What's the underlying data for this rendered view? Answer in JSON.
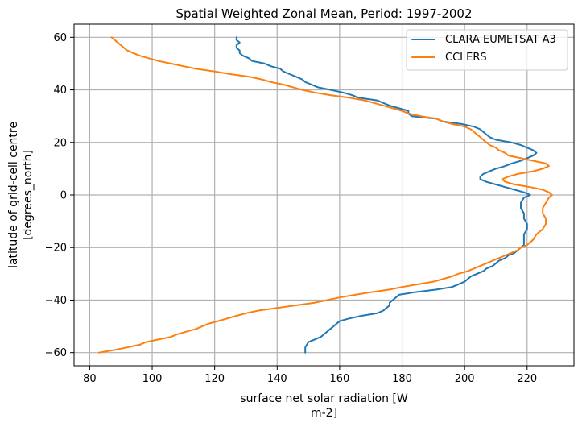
{
  "chart_data": {
    "type": "line",
    "title": "Spatial Weighted Zonal Mean, Period: 1997-2002",
    "xlabel": [
      "surface net solar radiation [W",
      "m-2]"
    ],
    "ylabel": [
      "latitude of grid-cell centre",
      "[degrees_north]"
    ],
    "xlim": [
      75,
      235
    ],
    "ylim": [
      -65,
      65
    ],
    "xticks": [
      80,
      100,
      120,
      140,
      160,
      180,
      200,
      220
    ],
    "yticks": [
      -60,
      -40,
      -20,
      0,
      20,
      40,
      60
    ],
    "xtick_labels": [
      "80",
      "100",
      "120",
      "140",
      "160",
      "180",
      "200",
      "220"
    ],
    "ytick_labels": [
      "−60",
      "−40",
      "−20",
      "0",
      "20",
      "40",
      "60"
    ],
    "grid": true,
    "legend_position": "top-right",
    "series": [
      {
        "name": "CLARA EUMETSAT A3",
        "color": "#1f77b4",
        "points": [
          [
            149,
            -60
          ],
          [
            149,
            -58
          ],
          [
            150,
            -56
          ],
          [
            152,
            -55
          ],
          [
            154,
            -54
          ],
          [
            155,
            -53
          ],
          [
            156,
            -52
          ],
          [
            157,
            -51
          ],
          [
            158,
            -50
          ],
          [
            159,
            -49
          ],
          [
            160,
            -48
          ],
          [
            163,
            -47
          ],
          [
            167,
            -46
          ],
          [
            172,
            -45
          ],
          [
            174,
            -44
          ],
          [
            175,
            -43
          ],
          [
            176,
            -42
          ],
          [
            176,
            -41
          ],
          [
            177,
            -40
          ],
          [
            178,
            -39
          ],
          [
            179,
            -38
          ],
          [
            184,
            -37
          ],
          [
            191,
            -36
          ],
          [
            196,
            -35
          ],
          [
            198,
            -34
          ],
          [
            200,
            -33
          ],
          [
            201,
            -32
          ],
          [
            202,
            -31
          ],
          [
            204,
            -30
          ],
          [
            206,
            -29
          ],
          [
            207,
            -28
          ],
          [
            209,
            -27
          ],
          [
            210,
            -26
          ],
          [
            211,
            -25
          ],
          [
            213,
            -24
          ],
          [
            214,
            -23
          ],
          [
            216,
            -22
          ],
          [
            217,
            -21
          ],
          [
            218,
            -20
          ],
          [
            219,
            -19
          ],
          [
            219,
            -17
          ],
          [
            219,
            -15
          ],
          [
            220,
            -13
          ],
          [
            220,
            -11
          ],
          [
            219,
            -9
          ],
          [
            219,
            -7
          ],
          [
            218,
            -5
          ],
          [
            218,
            -3
          ],
          [
            219,
            -1
          ],
          [
            221,
            0
          ],
          [
            219,
            1
          ],
          [
            216,
            2
          ],
          [
            213,
            3
          ],
          [
            210,
            4
          ],
          [
            207,
            5
          ],
          [
            205,
            6
          ],
          [
            205,
            7
          ],
          [
            206,
            8
          ],
          [
            208,
            9
          ],
          [
            210,
            10
          ],
          [
            213,
            11
          ],
          [
            215,
            12
          ],
          [
            218,
            13
          ],
          [
            220,
            14
          ],
          [
            222,
            15
          ],
          [
            223,
            16
          ],
          [
            222,
            17
          ],
          [
            220,
            18
          ],
          [
            218,
            19
          ],
          [
            215,
            20
          ],
          [
            210,
            21
          ],
          [
            208,
            22
          ],
          [
            207,
            23
          ],
          [
            206,
            24
          ],
          [
            205,
            25
          ],
          [
            203,
            26
          ],
          [
            199,
            27
          ],
          [
            193,
            28
          ],
          [
            191,
            29
          ],
          [
            183,
            30
          ],
          [
            182,
            31
          ],
          [
            182,
            32
          ],
          [
            179,
            33
          ],
          [
            176,
            34
          ],
          [
            174,
            35
          ],
          [
            172,
            36
          ],
          [
            166,
            37
          ],
          [
            164,
            38
          ],
          [
            161,
            39
          ],
          [
            157,
            40
          ],
          [
            153,
            41
          ],
          [
            151,
            42
          ],
          [
            149,
            43
          ],
          [
            148,
            44
          ],
          [
            146,
            45
          ],
          [
            144,
            46
          ],
          [
            142,
            47
          ],
          [
            141,
            48
          ],
          [
            138,
            49
          ],
          [
            136,
            50
          ],
          [
            132,
            51
          ],
          [
            131,
            52
          ],
          [
            129,
            53
          ],
          [
            128,
            54
          ],
          [
            128,
            55
          ],
          [
            127,
            56
          ],
          [
            127,
            57
          ],
          [
            128,
            58
          ],
          [
            127,
            59
          ],
          [
            127,
            60
          ]
        ]
      },
      {
        "name": "CCI ERS",
        "color": "#ff7f0e",
        "points": [
          [
            83,
            -60
          ],
          [
            88,
            -59
          ],
          [
            92,
            -58
          ],
          [
            96,
            -57
          ],
          [
            98,
            -56
          ],
          [
            102,
            -55
          ],
          [
            106,
            -54
          ],
          [
            108,
            -53
          ],
          [
            111,
            -52
          ],
          [
            114,
            -51
          ],
          [
            116,
            -50
          ],
          [
            118,
            -49
          ],
          [
            121,
            -48
          ],
          [
            124,
            -47
          ],
          [
            127,
            -46
          ],
          [
            130,
            -45
          ],
          [
            134,
            -44
          ],
          [
            140,
            -43
          ],
          [
            146,
            -42
          ],
          [
            152,
            -41
          ],
          [
            156,
            -40
          ],
          [
            160,
            -39
          ],
          [
            165,
            -38
          ],
          [
            170,
            -37
          ],
          [
            176,
            -36
          ],
          [
            180,
            -35
          ],
          [
            185,
            -34
          ],
          [
            190,
            -33
          ],
          [
            193,
            -32
          ],
          [
            196,
            -31
          ],
          [
            198,
            -30
          ],
          [
            201,
            -29
          ],
          [
            203,
            -28
          ],
          [
            205,
            -27
          ],
          [
            207,
            -26
          ],
          [
            209,
            -25
          ],
          [
            211,
            -24
          ],
          [
            213,
            -23
          ],
          [
            215,
            -22
          ],
          [
            217,
            -21
          ],
          [
            218,
            -20
          ],
          [
            220,
            -19
          ],
          [
            221,
            -18
          ],
          [
            222,
            -17
          ],
          [
            223,
            -15
          ],
          [
            225,
            -13
          ],
          [
            226,
            -11
          ],
          [
            226,
            -9
          ],
          [
            225,
            -7
          ],
          [
            225,
            -5
          ],
          [
            226,
            -3
          ],
          [
            227,
            -1
          ],
          [
            228,
            0
          ],
          [
            227,
            1
          ],
          [
            225,
            2
          ],
          [
            221,
            3
          ],
          [
            216,
            4
          ],
          [
            213,
            5
          ],
          [
            212,
            6
          ],
          [
            214,
            7
          ],
          [
            217,
            8
          ],
          [
            222,
            9
          ],
          [
            225,
            10
          ],
          [
            227,
            11
          ],
          [
            226,
            12
          ],
          [
            222,
            13
          ],
          [
            218,
            14
          ],
          [
            214,
            15
          ],
          [
            213,
            16
          ],
          [
            211,
            17
          ],
          [
            210,
            18
          ],
          [
            208,
            19
          ],
          [
            207,
            20
          ],
          [
            206,
            21
          ],
          [
            205,
            22
          ],
          [
            204,
            23
          ],
          [
            203,
            24
          ],
          [
            202,
            25
          ],
          [
            200,
            26
          ],
          [
            196,
            27
          ],
          [
            193,
            28
          ],
          [
            191,
            29
          ],
          [
            186,
            30
          ],
          [
            182,
            31
          ],
          [
            180,
            32
          ],
          [
            177,
            33
          ],
          [
            174,
            34
          ],
          [
            171,
            35
          ],
          [
            168,
            36
          ],
          [
            163,
            37
          ],
          [
            157,
            38
          ],
          [
            152,
            39
          ],
          [
            148,
            40
          ],
          [
            145,
            41
          ],
          [
            142,
            42
          ],
          [
            138,
            43
          ],
          [
            135,
            44
          ],
          [
            131,
            45
          ],
          [
            125,
            46
          ],
          [
            120,
            47
          ],
          [
            114,
            48
          ],
          [
            110,
            49
          ],
          [
            106,
            50
          ],
          [
            102,
            51
          ],
          [
            99,
            52
          ],
          [
            96,
            53
          ],
          [
            94,
            54
          ],
          [
            92,
            55
          ],
          [
            91,
            56
          ],
          [
            90,
            57
          ],
          [
            89,
            58
          ],
          [
            88,
            59
          ],
          [
            87,
            60
          ]
        ]
      }
    ]
  }
}
